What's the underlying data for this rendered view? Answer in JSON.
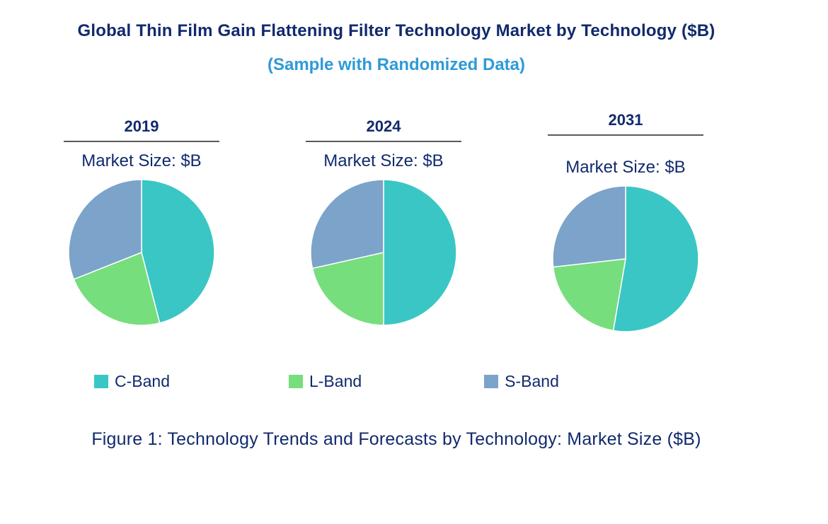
{
  "header": {
    "title": "Global Thin Film Gain Flattening Filter Technology Market by Technology ($B)",
    "subtitle": "(Sample with Randomized Data)"
  },
  "caption": "Figure 1: Technology Trends and Forecasts by Technology: Market Size ($B)",
  "legend": {
    "items": [
      {
        "label": "C-Band",
        "color": "#3ac6c4"
      },
      {
        "label": "L-Band",
        "color": "#77de7d"
      },
      {
        "label": "S-Band",
        "color": "#7ca3ca"
      }
    ]
  },
  "colors": {
    "title_navy": "#112a6d",
    "subtitle_blue": "#2e9ad8",
    "underline_gray": "#5a5a5a",
    "c_band": "#3ac6c4",
    "l_band": "#77de7d",
    "s_band": "#7ca3ca"
  },
  "chart_data": [
    {
      "type": "pie",
      "year": "2019",
      "label": "Market Size: $B",
      "categories": [
        "C-Band",
        "L-Band",
        "S-Band"
      ],
      "values_pct": [
        46,
        23,
        31
      ],
      "colors": [
        "#3ac6c4",
        "#77de7d",
        "#7ca3ca"
      ],
      "start_angle_deg": 0,
      "direction": "clockwise"
    },
    {
      "type": "pie",
      "year": "2024",
      "label": "Market Size: $B",
      "categories": [
        "C-Band",
        "L-Band",
        "S-Band"
      ],
      "values_pct": [
        50,
        21.5,
        28.5
      ],
      "colors": [
        "#3ac6c4",
        "#77de7d",
        "#7ca3ca"
      ],
      "start_angle_deg": 0,
      "direction": "clockwise"
    },
    {
      "type": "pie",
      "year": "2031",
      "label": "Market Size: $B",
      "categories": [
        "C-Band",
        "L-Band",
        "S-Band"
      ],
      "values_pct": [
        52.7,
        20.5,
        26.8
      ],
      "colors": [
        "#3ac6c4",
        "#77de7d",
        "#7ca3ca"
      ],
      "start_angle_deg": 0,
      "direction": "clockwise"
    }
  ]
}
